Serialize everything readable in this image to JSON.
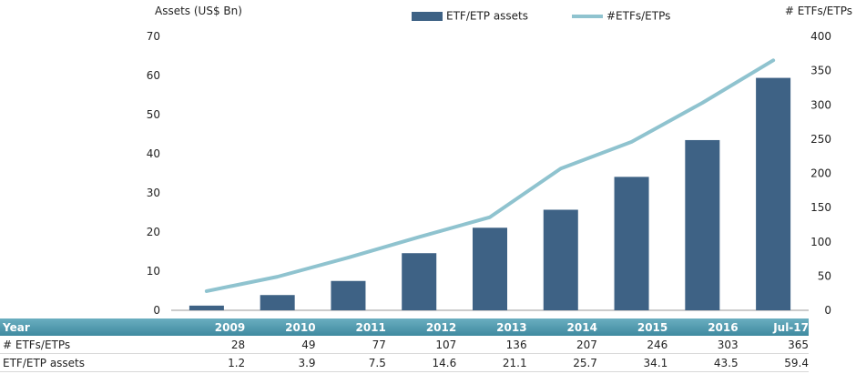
{
  "chart_data": {
    "type": "bar",
    "categories": [
      "2009",
      "2010",
      "2011",
      "2012",
      "2013",
      "2014",
      "2015",
      "2016",
      "Jul-17"
    ],
    "series": [
      {
        "name": "ETF/ETP assets",
        "type": "bar",
        "axis": "left",
        "values": [
          1.2,
          3.9,
          7.5,
          14.6,
          21.1,
          25.7,
          34.1,
          43.5,
          59.4
        ]
      },
      {
        "name": "#ETFs/ETPs",
        "type": "line",
        "axis": "right",
        "values": [
          28,
          49,
          77,
          107,
          136,
          207,
          246,
          303,
          365
        ]
      }
    ],
    "ylabel": "Assets (US$ Bn)",
    "y2label": "# ETFs/ETPs",
    "ylim": [
      0,
      70
    ],
    "y2lim": [
      0,
      400
    ],
    "yticks": [
      0,
      10,
      20,
      30,
      40,
      50,
      60,
      70
    ],
    "y2ticks": [
      0,
      50,
      100,
      150,
      200,
      250,
      300,
      350,
      400
    ],
    "legend_position": "top-center",
    "grid": false,
    "colors": {
      "bar": "#3e6285",
      "line": "#8fc3cf",
      "table_header": "#4f97ab"
    }
  },
  "table": {
    "header_label": "Year",
    "rows": [
      {
        "label": "# ETFs/ETPs",
        "values": [
          "28",
          "49",
          "77",
          "107",
          "136",
          "207",
          "246",
          "303",
          "365"
        ]
      },
      {
        "label": "ETF/ETP assets",
        "values": [
          "1.2",
          "3.9",
          "7.5",
          "14.6",
          "21.1",
          "25.7",
          "34.1",
          "43.5",
          "59.4"
        ]
      }
    ]
  }
}
